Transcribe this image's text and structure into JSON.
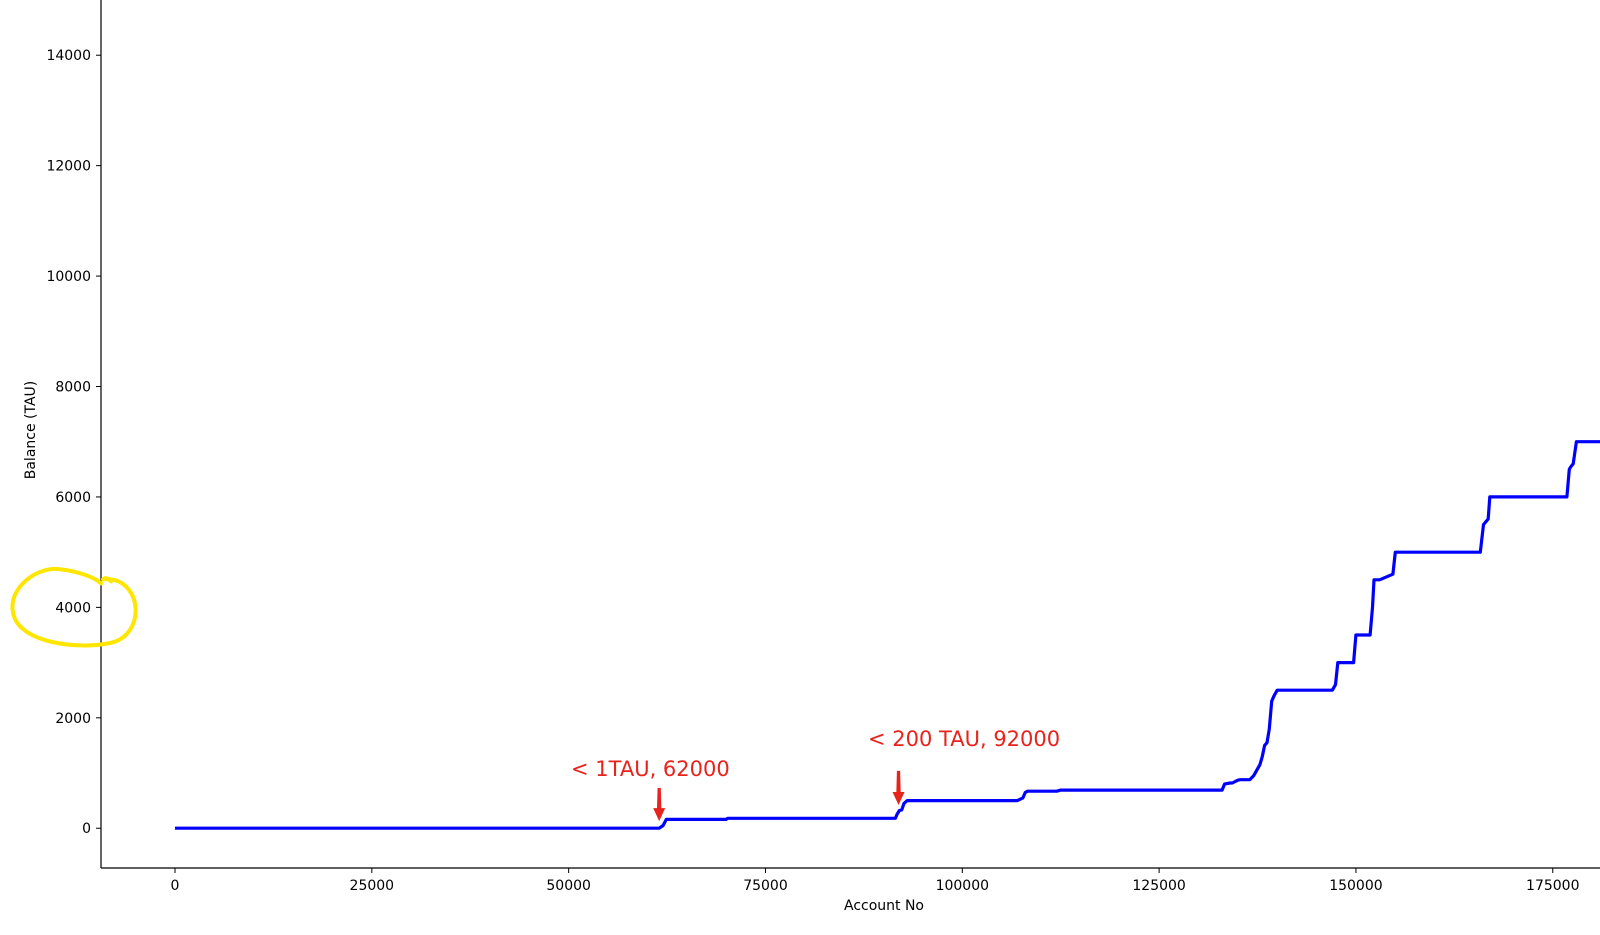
{
  "chart_data": {
    "type": "line",
    "xlabel": "Account No",
    "ylabel": "Balance (TAU)",
    "xlim": [
      -9400,
      181000
    ],
    "ylim": [
      -720,
      15000
    ],
    "xticks": [
      0,
      25000,
      50000,
      75000,
      100000,
      125000,
      150000,
      175000
    ],
    "yticks": [
      0,
      2000,
      4000,
      6000,
      8000,
      10000,
      12000,
      14000
    ],
    "grid": false,
    "series": [
      {
        "color": "#0000ff",
        "x": [
          0,
          61500,
          62000,
          62400,
          70000,
          70200,
          91500,
          91700,
          92000,
          92300,
          92600,
          93000,
          107000,
          107700,
          108000,
          108300,
          112000,
          112500,
          133000,
          133300,
          134000,
          134300,
          135000,
          135300,
          136500,
          137000,
          137400,
          137800,
          138100,
          138400,
          138700,
          139000,
          139300,
          139600,
          140000,
          140300,
          147000,
          147400,
          147700,
          148000,
          149700,
          150000,
          150300,
          151800,
          152100,
          152300,
          153000,
          154700,
          155000,
          165800,
          166200,
          166500,
          166800,
          167000,
          176800,
          177100,
          177300,
          177600,
          178000,
          181000
        ],
        "y": [
          0,
          0,
          50,
          160,
          160,
          180,
          180,
          250,
          320,
          330,
          450,
          500,
          500,
          550,
          650,
          670,
          670,
          690,
          690,
          800,
          820,
          820,
          870,
          880,
          880,
          950,
          1050,
          1150,
          1300,
          1500,
          1550,
          1800,
          2300,
          2400,
          2500,
          2500,
          2500,
          2600,
          3000,
          3000,
          3000,
          3500,
          3500,
          3500,
          4000,
          4500,
          4500,
          4600,
          5000,
          5000,
          5500,
          5550,
          5600,
          6000,
          6000,
          6500,
          6550,
          6600,
          7000,
          7000
        ]
      }
    ],
    "annotations": [
      {
        "text": "< 1TAU, 62000",
        "color": "#e8231c",
        "arrow_x": 61500,
        "arrow_y_top": 730,
        "arrow_y_tip": 130
      },
      {
        "text": "< 200 TAU, 92000",
        "color": "#e8231c",
        "arrow_x": 91900,
        "arrow_y_top": 1040,
        "arrow_y_tip": 420
      }
    ],
    "highlight": {
      "color": "#ffe600",
      "target_tick": 4000
    }
  }
}
